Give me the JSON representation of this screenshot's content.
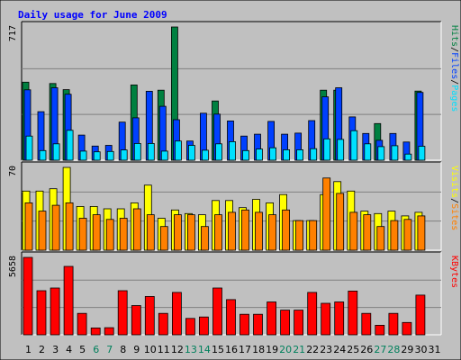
{
  "chart_data": {
    "type": "bar",
    "title": "Daily usage for June 2009",
    "categories": [
      "1",
      "2",
      "3",
      "4",
      "5",
      "6",
      "7",
      "8",
      "9",
      "10",
      "11",
      "12",
      "13",
      "14",
      "15",
      "16",
      "17",
      "18",
      "19",
      "20",
      "21",
      "22",
      "23",
      "24",
      "25",
      "26",
      "27",
      "28",
      "29",
      "30",
      "31"
    ],
    "weekend_days": [
      6,
      7,
      13,
      14,
      20,
      21,
      27,
      28
    ],
    "panels": [
      {
        "id": "pages-files-hits",
        "max_label": "717",
        "ymax": 717,
        "legend": [
          "Pages",
          "Files",
          "Hits"
        ],
        "series": [
          {
            "name": "Hits",
            "color": "#008040",
            "values": [
              420,
              0,
              413,
              380,
              0,
              0,
              0,
              0,
              405,
              0,
              377,
              717,
              0,
              0,
              319,
              0,
              0,
              0,
              0,
              0,
              0,
              0,
              377,
              377,
              0,
              0,
              197,
              0,
              0,
              372,
              0
            ]
          },
          {
            "name": "Files",
            "color": "#0040ff",
            "values": [
              379,
              261,
              390,
              355,
              135,
              76,
              80,
              205,
              228,
              371,
              290,
              218,
              103,
              253,
              248,
              211,
              130,
              140,
              209,
              140,
              146,
              213,
              341,
              390,
              233,
              144,
              107,
              144,
              98,
              365,
              0
            ]
          },
          {
            "name": "Pages",
            "color": "#00e0ff",
            "values": [
              130,
              52,
              88,
              161,
              49,
              45,
              47,
              55,
              90,
              90,
              49,
              103,
              80,
              54,
              88,
              100,
              52,
              60,
              67,
              56,
              56,
              62,
              115,
              112,
              159,
              88,
              73,
              78,
              33,
              75,
              0
            ]
          }
        ]
      },
      {
        "id": "sites-visits",
        "max_label": "70",
        "ymax": 70,
        "legend": [
          "Sites",
          "Visits"
        ],
        "series": [
          {
            "name": "Visits",
            "color": "#ffff00",
            "values": [
              50,
              50,
              52,
              70,
              37,
              37,
              35,
              35,
              40,
              55,
              27,
              34,
              31,
              30,
              42,
              42,
              36,
              43,
              40,
              47,
              25,
              25,
              47,
              58,
              50,
              33,
              31,
              33,
              29,
              32,
              0
            ]
          },
          {
            "name": "Sites",
            "color": "#ff8000",
            "values": [
              40,
              33,
              38,
              40,
              27,
              30,
              26,
              27,
              35,
              30,
              20,
              30,
              30,
              20,
              30,
              32,
              34,
              32,
              30,
              34,
              25,
              25,
              61,
              48,
              32,
              30,
              20,
              25,
              26,
              29,
              0
            ]
          }
        ]
      },
      {
        "id": "kbytes",
        "max_label": "5658",
        "ymax": 5658,
        "legend": [
          "KBytes"
        ],
        "series": [
          {
            "name": "KBytes",
            "color": "#ff0000",
            "values": [
              5658,
              3223,
              3419,
              4998,
              1563,
              500,
              520,
              3223,
              2140,
              2800,
              1563,
              3100,
              1200,
              1300,
              3419,
              2570,
              1500,
              1500,
              2400,
              1800,
              1800,
              3100,
              2300,
              2400,
              3200,
              1563,
              700,
              1563,
              900,
              2900,
              0
            ]
          }
        ]
      }
    ]
  }
}
